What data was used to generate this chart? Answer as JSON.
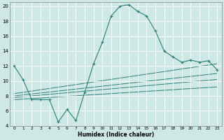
{
  "xlabel": "Humidex (Indice chaleur)",
  "ylabel": "",
  "xlim": [
    -0.5,
    23.5
  ],
  "ylim": [
    4,
    20.5
  ],
  "yticks": [
    4,
    6,
    8,
    10,
    12,
    14,
    16,
    18,
    20
  ],
  "xticks": [
    0,
    1,
    2,
    3,
    4,
    5,
    6,
    7,
    8,
    9,
    10,
    11,
    12,
    13,
    14,
    15,
    16,
    17,
    18,
    19,
    20,
    21,
    22,
    23
  ],
  "bg_color": "#cde8e5",
  "grid_color": "#b0d4d0",
  "line_color": "#2e7d7a",
  "main_curve": {
    "x": [
      0,
      1,
      2,
      3,
      4,
      5,
      6,
      7,
      8,
      9,
      10,
      11,
      12,
      13,
      14,
      15,
      16,
      17,
      18,
      19,
      20,
      21,
      22,
      23
    ],
    "y": [
      12,
      10.2,
      7.5,
      7.5,
      7.5,
      4.5,
      6.2,
      4.7,
      8.5,
      12.3,
      15.2,
      18.7,
      20.0,
      20.2,
      19.3,
      18.7,
      16.7,
      14.0,
      13.2,
      12.5,
      12.8,
      12.5,
      12.7,
      11.5
    ]
  },
  "diagonal_lines": [
    {
      "x0": 0,
      "y0": 7.5,
      "x1": 23,
      "y1": 9.2
    },
    {
      "x0": 0,
      "y0": 7.8,
      "x1": 23,
      "y1": 10.2
    },
    {
      "x0": 0,
      "y0": 8.0,
      "x1": 23,
      "y1": 11.0
    },
    {
      "x0": 0,
      "y0": 8.3,
      "x1": 23,
      "y1": 12.3
    }
  ]
}
